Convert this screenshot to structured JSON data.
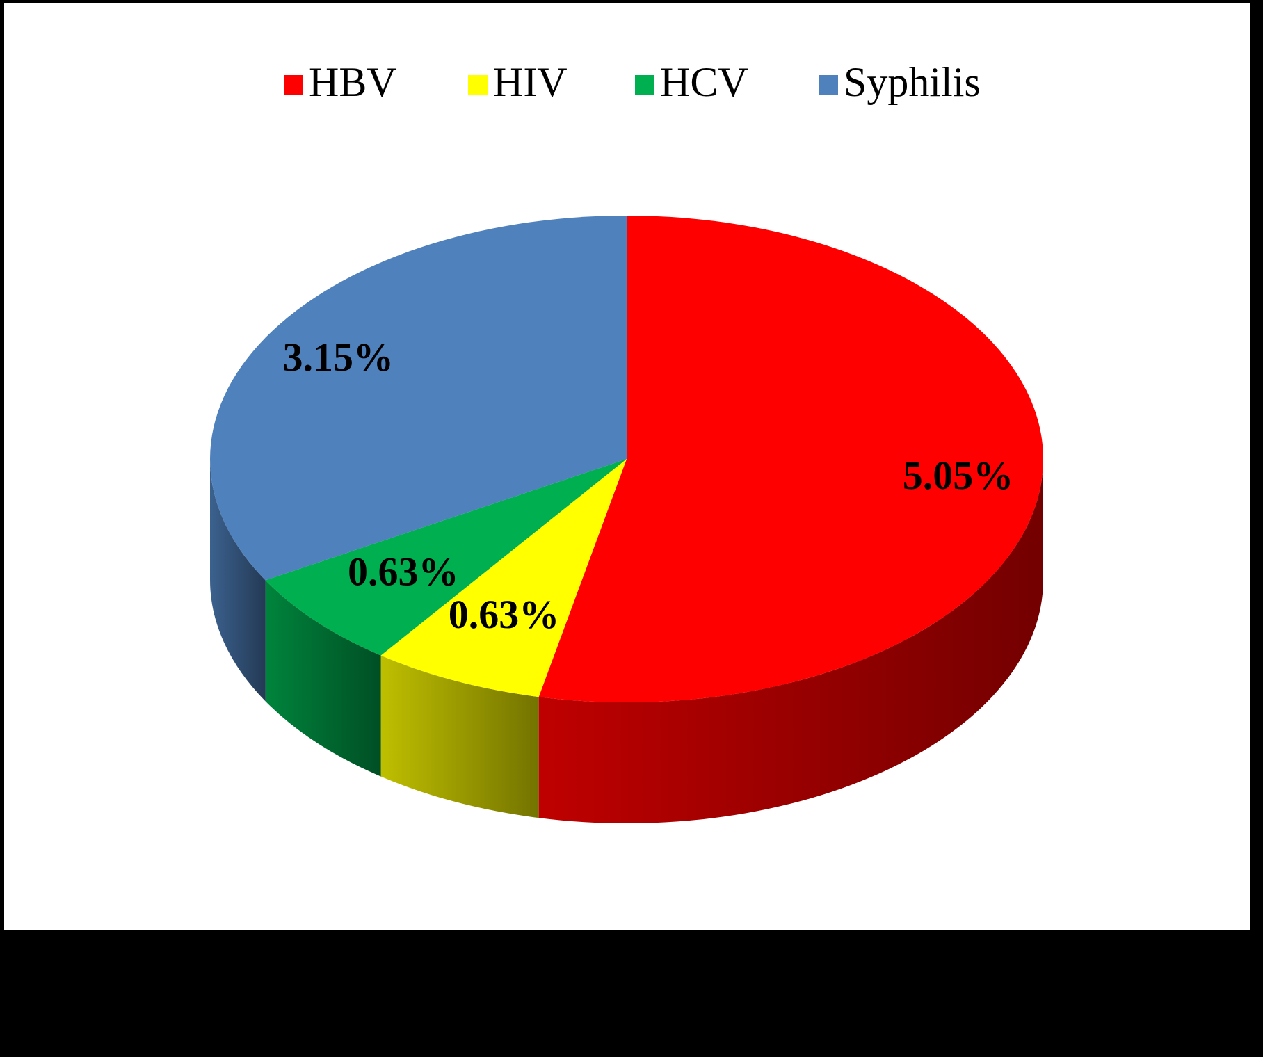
{
  "chart_data": {
    "type": "pie",
    "categories": [
      "HBV",
      "HIV",
      "HCV",
      "Syphilis"
    ],
    "values": [
      5.05,
      0.63,
      0.63,
      3.15
    ],
    "value_labels": [
      "5.05%",
      "0.63%",
      "0.63%",
      "3.15%"
    ],
    "colors": [
      "#ff0000",
      "#ffff00",
      "#00b050",
      "#4f81bd"
    ],
    "legend": "top"
  }
}
